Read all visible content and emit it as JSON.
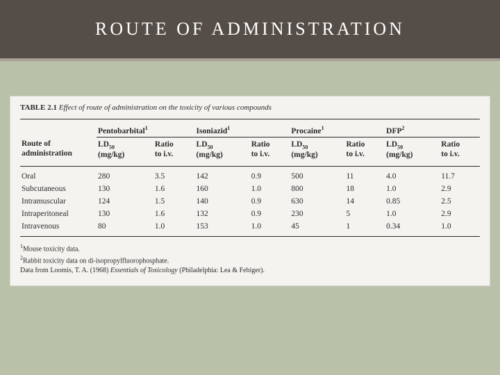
{
  "header": {
    "title": "ROUTE OF ADMINISTRATION"
  },
  "caption": {
    "label": "TABLE 2.1",
    "text": "Effect of route of administration on the toxicity of various compounds"
  },
  "colors": {
    "page_bg": "#bac1a9",
    "header_bg": "#554e48",
    "header_border": "#a8a098",
    "table_bg": "#f4f3ef",
    "rule": "#2a2a2a",
    "text": "#2a2a2a"
  },
  "typography": {
    "title_fontsize": 26,
    "title_letterspacing": 4,
    "table_fontsize": 11.5,
    "caption_fontsize": 11,
    "footnote_fontsize": 10
  },
  "table": {
    "row_header": "Route of administration",
    "compounds": [
      {
        "name": "Pentobarbital",
        "sup": "1"
      },
      {
        "name": "Isoniazid",
        "sup": "1"
      },
      {
        "name": "Procaine",
        "sup": "1"
      },
      {
        "name": "DFP",
        "sup": "2"
      }
    ],
    "subheaders": {
      "ld": "LD",
      "ld_sub": "50",
      "ld_unit": "(mg/kg)",
      "ratio": "Ratio",
      "ratio_to": "to i.v."
    },
    "rows": [
      {
        "label": "Oral",
        "vals": [
          "280",
          "3.5",
          "142",
          "0.9",
          "500",
          "11",
          "4.0",
          "11.7"
        ]
      },
      {
        "label": "Subcutaneous",
        "vals": [
          "130",
          "1.6",
          "160",
          "1.0",
          "800",
          "18",
          "1.0",
          "2.9"
        ]
      },
      {
        "label": "Intramuscular",
        "vals": [
          "124",
          "1.5",
          "140",
          "0.9",
          "630",
          "14",
          "0.85",
          "2.5"
        ]
      },
      {
        "label": "Intraperitoneal",
        "vals": [
          "130",
          "1.6",
          "132",
          "0.9",
          "230",
          "5",
          "1.0",
          "2.9"
        ]
      },
      {
        "label": "Intravenous",
        "vals": [
          "80",
          "1.0",
          "153",
          "1.0",
          "45",
          "1",
          "0.34",
          "1.0"
        ]
      }
    ]
  },
  "footnotes": {
    "f1": "Mouse toxicity data.",
    "f2": "Rabbit toxicity data on di-isopropylfluorophosphate.",
    "src_prefix": "Data from Loomis, T. A. (1968) ",
    "src_italic": "Essentials of Toxicology",
    "src_suffix": " (Philadelphia: Lea & Febiger)."
  }
}
